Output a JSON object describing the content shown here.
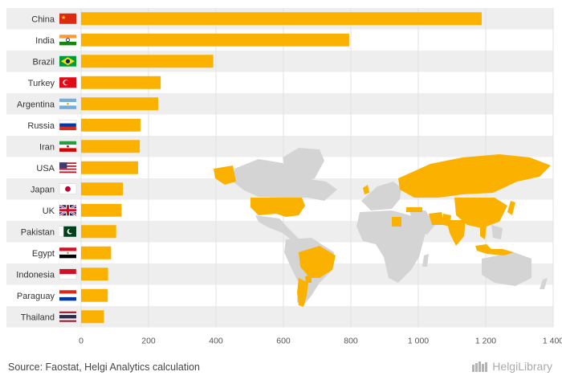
{
  "chart_data": {
    "type": "bar",
    "orientation": "horizontal",
    "categories": [
      "China",
      "India",
      "Brazil",
      "Turkey",
      "Argentina",
      "Russia",
      "Iran",
      "USA",
      "Japan",
      "UK",
      "Pakistan",
      "Egypt",
      "Indonesia",
      "Paraguay",
      "Thailand"
    ],
    "values": [
      1188,
      795,
      392,
      236,
      229,
      176,
      174,
      169,
      124,
      120,
      104,
      89,
      80,
      79,
      68
    ],
    "flags": [
      "flag-china",
      "flag-india",
      "flag-brazil",
      "flag-turkey",
      "flag-argentina",
      "flag-russia",
      "flag-iran",
      "flag-usa",
      "flag-japan",
      "flag-uk",
      "flag-pakistan",
      "flag-egypt",
      "flag-indonesia",
      "flag-paraguay",
      "flag-thailand"
    ],
    "xlim": [
      0,
      1400
    ],
    "xticks": [
      0,
      200,
      400,
      600,
      800,
      1000,
      1200,
      1400
    ],
    "xtick_labels": [
      "0",
      "200",
      "400",
      "600",
      "800",
      "1 000",
      "1 200",
      "1 400"
    ],
    "title": "",
    "xlabel": "",
    "ylabel": "",
    "grid": true,
    "background_map": "world-map-highlighting-listed-countries",
    "colors": {
      "bar": "#FBB100",
      "map_land": "#D4D4D4",
      "map_highlight": "#FBB100",
      "row_band": "#EEEEEE",
      "grid": "#E2E2E2"
    }
  },
  "footer": {
    "source": "Source: Faostat, Helgi Analytics calculation",
    "brand": "HelgiLibrary"
  }
}
